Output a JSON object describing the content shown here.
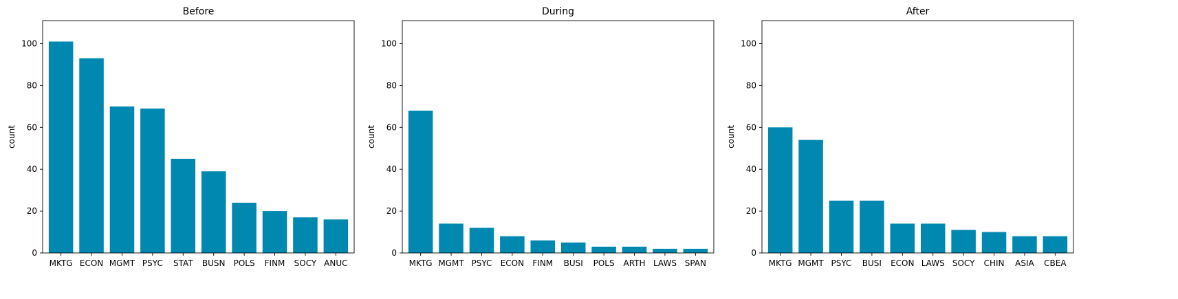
{
  "chart_data": [
    {
      "type": "bar",
      "title": "Before",
      "xlabel": "",
      "ylabel": "count",
      "ylim": [
        0,
        111
      ],
      "yticks": [
        0,
        20,
        40,
        60,
        80,
        100
      ],
      "categories": [
        "MKTG",
        "ECON",
        "MGMT",
        "PSYC",
        "STAT",
        "BUSN",
        "POLS",
        "FINM",
        "SOCY",
        "ANUC"
      ],
      "values": [
        101,
        93,
        70,
        69,
        45,
        39,
        24,
        20,
        17,
        16
      ],
      "bar_color": "#0088b0"
    },
    {
      "type": "bar",
      "title": "During",
      "xlabel": "",
      "ylabel": "count",
      "ylim": [
        0,
        111
      ],
      "yticks": [
        0,
        20,
        40,
        60,
        80,
        100
      ],
      "categories": [
        "MKTG",
        "MGMT",
        "PSYC",
        "ECON",
        "FINM",
        "BUSI",
        "POLS",
        "ARTH",
        "LAWS",
        "SPAN"
      ],
      "values": [
        68,
        14,
        12,
        8,
        6,
        5,
        3,
        3,
        2,
        2
      ],
      "bar_color": "#0088b0"
    },
    {
      "type": "bar",
      "title": "After",
      "xlabel": "",
      "ylabel": "count",
      "ylim": [
        0,
        111
      ],
      "yticks": [
        0,
        20,
        40,
        60,
        80,
        100
      ],
      "categories": [
        "MKTG",
        "MGMT",
        "PSYC",
        "BUSI",
        "ECON",
        "LAWS",
        "SOCY",
        "CHIN",
        "ASIA",
        "CBEA"
      ],
      "values": [
        60,
        54,
        25,
        25,
        14,
        14,
        11,
        10,
        8,
        8
      ],
      "bar_color": "#0088b0"
    }
  ]
}
